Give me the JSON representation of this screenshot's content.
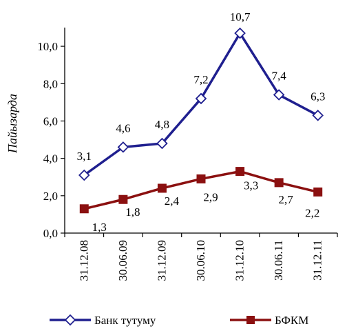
{
  "chart_data": {
    "type": "line",
    "title": "",
    "xlabel": "",
    "ylabel": "Пайызарда",
    "categories": [
      "31.12.08",
      "30.06.09",
      "31.12.09",
      "30.06.10",
      "31.12.10",
      "30.06.11",
      "31.12.11"
    ],
    "ylim": [
      0,
      11
    ],
    "yticks": [
      0.0,
      2.0,
      4.0,
      6.0,
      8.0,
      10.0
    ],
    "ytick_labels": [
      "0,0",
      "2,0",
      "4,0",
      "6,0",
      "8,0",
      "10,0"
    ],
    "grid": false,
    "legend_position": "bottom",
    "series": [
      {
        "name": "Банк тутуму",
        "values": [
          3.1,
          4.6,
          4.8,
          7.2,
          10.7,
          7.4,
          6.3
        ],
        "labels": [
          "3,1",
          "4,6",
          "4,8",
          "7,2",
          "10,7",
          "7,4",
          "6,3"
        ],
        "color": "#1f1f8f",
        "marker": "diamond-open"
      },
      {
        "name": "БФКМ",
        "values": [
          1.3,
          1.8,
          2.4,
          2.9,
          3.3,
          2.7,
          2.2
        ],
        "labels": [
          "1,3",
          "1,8",
          "2,4",
          "2,9",
          "3,3",
          "2,7",
          "2,2"
        ],
        "color": "#8b1010",
        "marker": "square-filled"
      }
    ]
  }
}
